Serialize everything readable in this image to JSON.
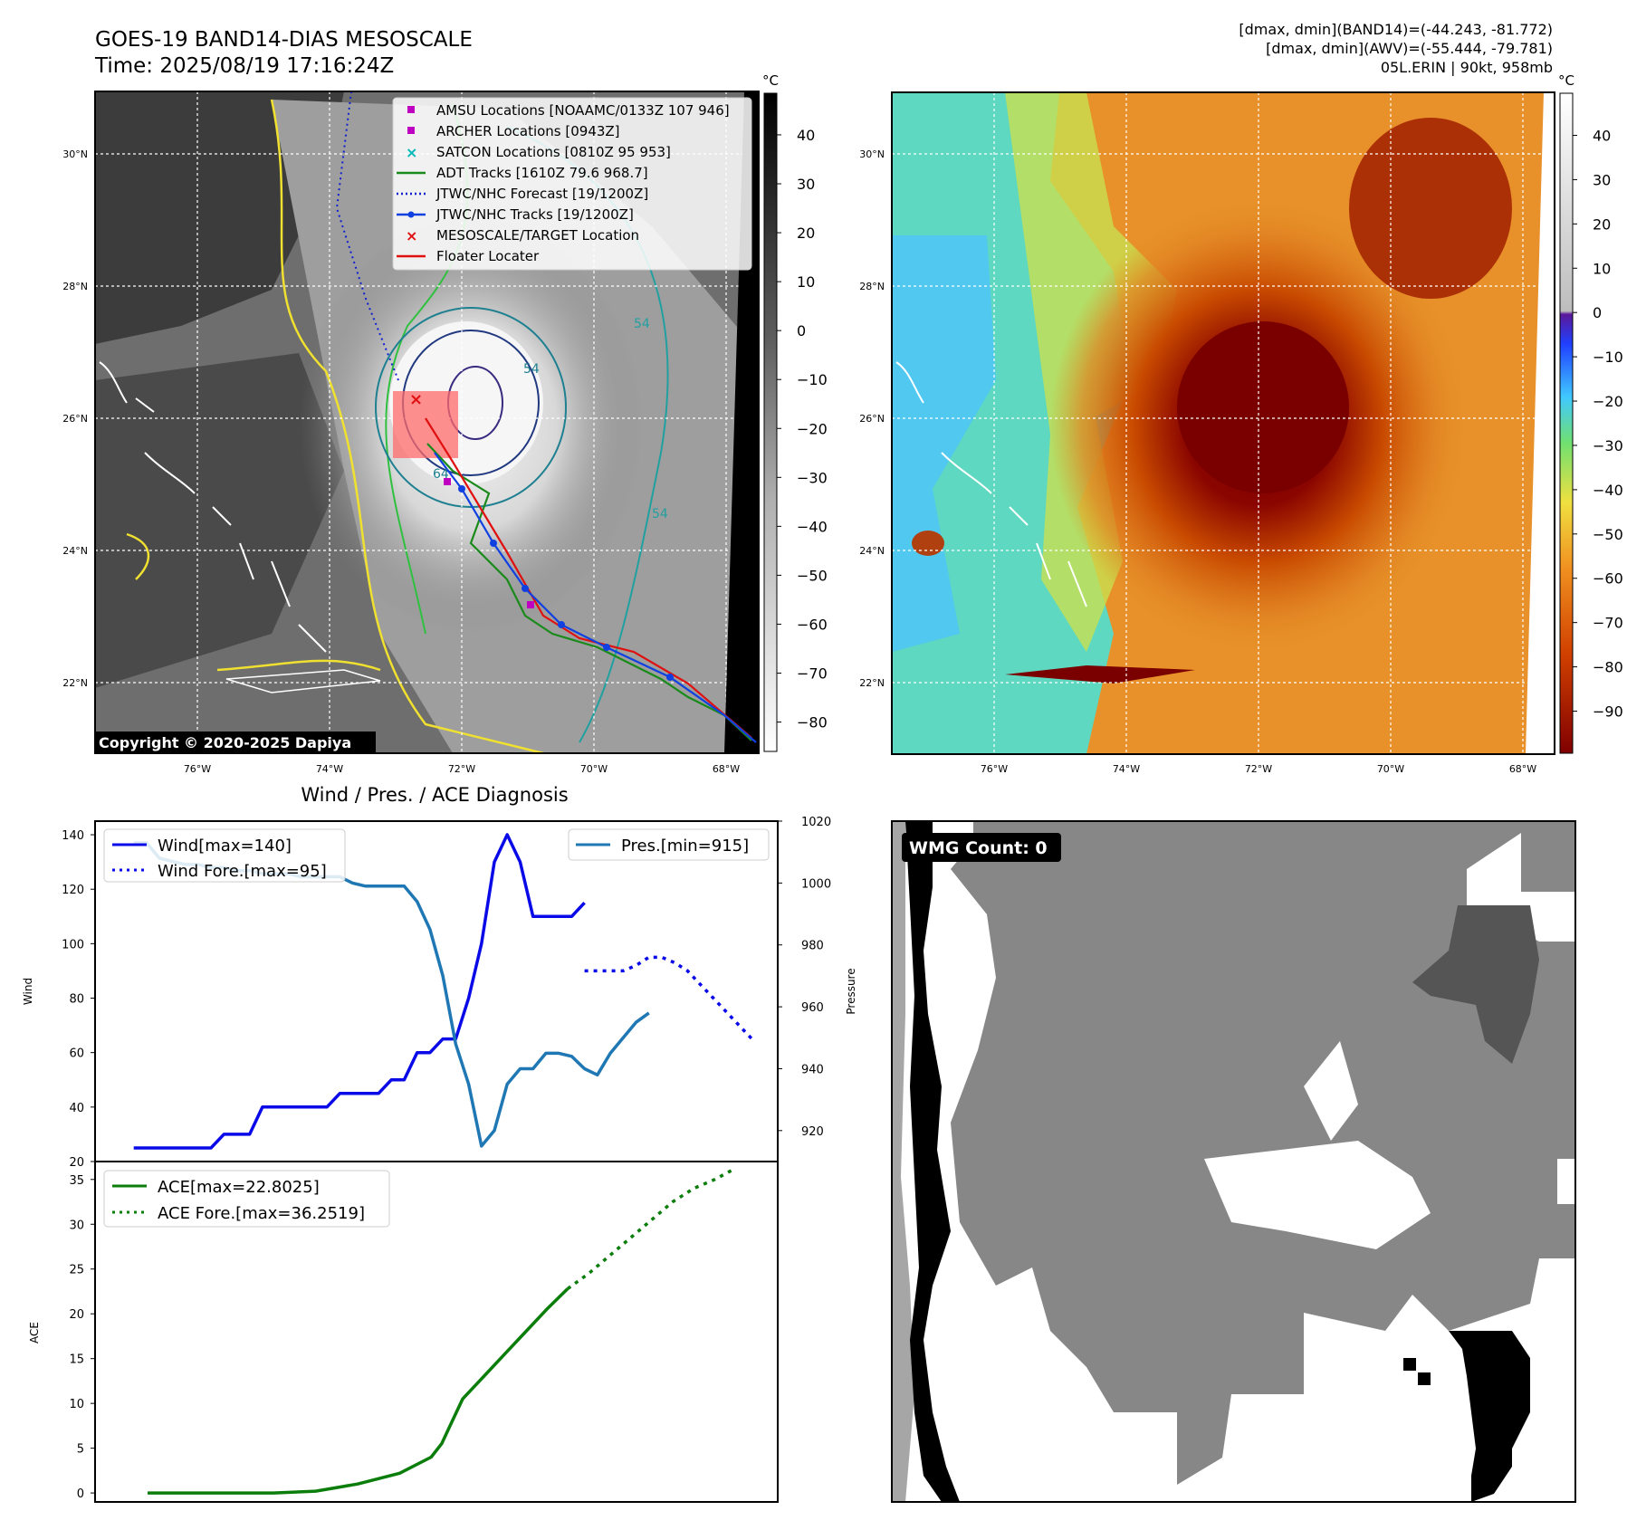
{
  "header": {
    "title_line1": "GOES-19 BAND14-DIAS MESOSCALE",
    "title_line2": "Time: 2025/08/19 17:16:24Z",
    "info_line1": "[dmax, dmin](BAND14)=(-44.243, -81.772)",
    "info_line2": "[dmax, dmin](AWV)=(-55.444, -79.781)",
    "info_line3": "05L.ERIN | 90kt, 958mb"
  },
  "colors": {
    "wind": "#0a0ae8",
    "pressure": "#1f77b4",
    "ace": "#0a7d0a",
    "adt": "#1a8a1a",
    "track": "#1040e0",
    "floater": "#e01010",
    "amsu": "#c000c0",
    "satcon": "#00b8b8"
  },
  "map_left": {
    "unit_label": "°C",
    "colorbar_ticks": [
      "40",
      "30",
      "20",
      "10",
      "0",
      "−10",
      "−20",
      "−30",
      "−40",
      "−50",
      "−60",
      "−70",
      "−80"
    ],
    "lat_labels": [
      "30°N",
      "28°N",
      "26°N",
      "24°N",
      "22°N"
    ],
    "lon_labels": [
      "76°W",
      "74°W",
      "72°W",
      "70°W",
      "68°W"
    ],
    "contour_labels": [
      "54",
      "54",
      "64",
      "54"
    ],
    "copyright": "Copyright © 2020-2025 Dapiya",
    "legend": [
      {
        "label": "AMSU Locations [NOAAMC/0133Z 107 946]",
        "icon": "square",
        "color": "#c000c0"
      },
      {
        "label": "ARCHER Locations [0943Z]",
        "icon": "square",
        "color": "#c000c0"
      },
      {
        "label": "SATCON Locations [0810Z 95 953]",
        "icon": "x",
        "color": "#00b8b8"
      },
      {
        "label": "ADT Tracks [1610Z 79.6 968.7]",
        "icon": "line",
        "color": "#1a8a1a"
      },
      {
        "label": "JTWC/NHC Forecast [19/1200Z]",
        "icon": "dotted",
        "color": "#1020d0"
      },
      {
        "label": "JTWC/NHC Tracks [19/1200Z]",
        "icon": "line-dot",
        "color": "#1040e0"
      },
      {
        "label": "MESOSCALE/TARGET Location",
        "icon": "x",
        "color": "#e01010"
      },
      {
        "label": "Floater Locater",
        "icon": "line",
        "color": "#e01010"
      }
    ]
  },
  "map_right": {
    "unit_label": "°C",
    "colorbar_ticks": [
      "40",
      "30",
      "20",
      "10",
      "0",
      "−10",
      "−20",
      "−30",
      "−40",
      "−50",
      "−60",
      "−70",
      "−80",
      "−90"
    ],
    "lat_labels": [
      "30°N",
      "28°N",
      "26°N",
      "24°N",
      "22°N"
    ],
    "lon_labels": [
      "76°W",
      "74°W",
      "72°W",
      "70°W",
      "68°W"
    ]
  },
  "wmg": {
    "label": "WMG Count: 0"
  },
  "chart_data": [
    {
      "type": "line",
      "title": "Wind / Pres. / ACE Diagnosis",
      "ylabel": "Wind",
      "ylabel_right": "Pressure",
      "ylim": [
        20,
        145
      ],
      "ylim_right": [
        910,
        1020
      ],
      "yticks": [
        "140",
        "120",
        "100",
        "80",
        "60",
        "40",
        "20"
      ],
      "yticks_right": [
        "1020",
        "1000",
        "980",
        "960",
        "940",
        "920"
      ],
      "series": [
        {
          "name": "Wind[max=140]",
          "style": "solid",
          "axis": "left",
          "x": [
            0,
            1,
            2,
            3,
            4,
            5,
            6,
            7,
            8,
            9,
            10,
            11,
            12,
            13,
            14,
            15,
            16,
            17,
            18,
            19,
            20,
            21,
            22,
            23,
            24,
            25,
            26,
            27,
            28,
            29,
            30,
            31,
            32,
            33,
            34,
            35
          ],
          "values": [
            25,
            25,
            25,
            25,
            25,
            25,
            25,
            30,
            30,
            30,
            40,
            40,
            40,
            40,
            40,
            40,
            45,
            45,
            45,
            45,
            50,
            50,
            60,
            60,
            65,
            65,
            80,
            100,
            130,
            140,
            130,
            110,
            110,
            110,
            110,
            115
          ]
        },
        {
          "name": "Wind Fore.[max=95]",
          "style": "dotted",
          "axis": "left",
          "x": [
            35,
            36,
            37,
            38,
            39,
            40,
            41,
            42,
            43,
            44,
            45,
            46,
            47,
            48
          ],
          "values": [
            90,
            90,
            90,
            90,
            92,
            95,
            95,
            93,
            90,
            85,
            80,
            75,
            70,
            65
          ]
        },
        {
          "name": "Pres.[min=915]",
          "style": "solid",
          "axis": "right",
          "x": [
            0,
            1,
            2,
            3,
            4,
            5,
            6,
            7,
            8,
            9,
            10,
            11,
            12,
            13,
            14,
            15,
            16,
            17,
            18,
            19,
            20,
            21,
            22,
            23,
            24,
            25,
            26,
            27,
            28,
            29,
            30,
            31,
            32,
            33,
            34,
            35,
            36,
            37,
            38,
            39,
            40
          ],
          "values": [
            1013,
            1013,
            1008,
            1007,
            1006,
            1006,
            1005,
            1005,
            1004,
            1004,
            1003,
            1003,
            1003,
            1002,
            1002,
            1002,
            1002,
            1000,
            999,
            999,
            999,
            999,
            994,
            985,
            970,
            948,
            935,
            915,
            920,
            935,
            940,
            940,
            945,
            945,
            944,
            940,
            938,
            945,
            950,
            955,
            958
          ]
        }
      ]
    },
    {
      "type": "line",
      "ylabel": "ACE",
      "ylim": [
        -1,
        37
      ],
      "yticks": [
        "35",
        "30",
        "25",
        "20",
        "15",
        "10",
        "5",
        "0"
      ],
      "series": [
        {
          "name": "ACE[max=22.8025]",
          "style": "solid",
          "x": [
            0,
            4,
            8,
            12,
            16,
            20,
            24,
            27,
            28,
            29,
            30,
            32,
            34,
            36,
            38,
            40
          ],
          "values": [
            0,
            0,
            0,
            0,
            0.2,
            1,
            2.2,
            4,
            5.5,
            8,
            10.5,
            13,
            15.5,
            18,
            20.5,
            22.8
          ]
        },
        {
          "name": "ACE Fore.[max=36.2519]",
          "style": "dotted",
          "x": [
            40,
            42,
            44,
            46,
            48,
            50,
            52,
            54,
            56
          ],
          "values": [
            22.8,
            24.5,
            26.5,
            28.5,
            30.5,
            32.5,
            34,
            35,
            36.25
          ]
        }
      ]
    }
  ]
}
